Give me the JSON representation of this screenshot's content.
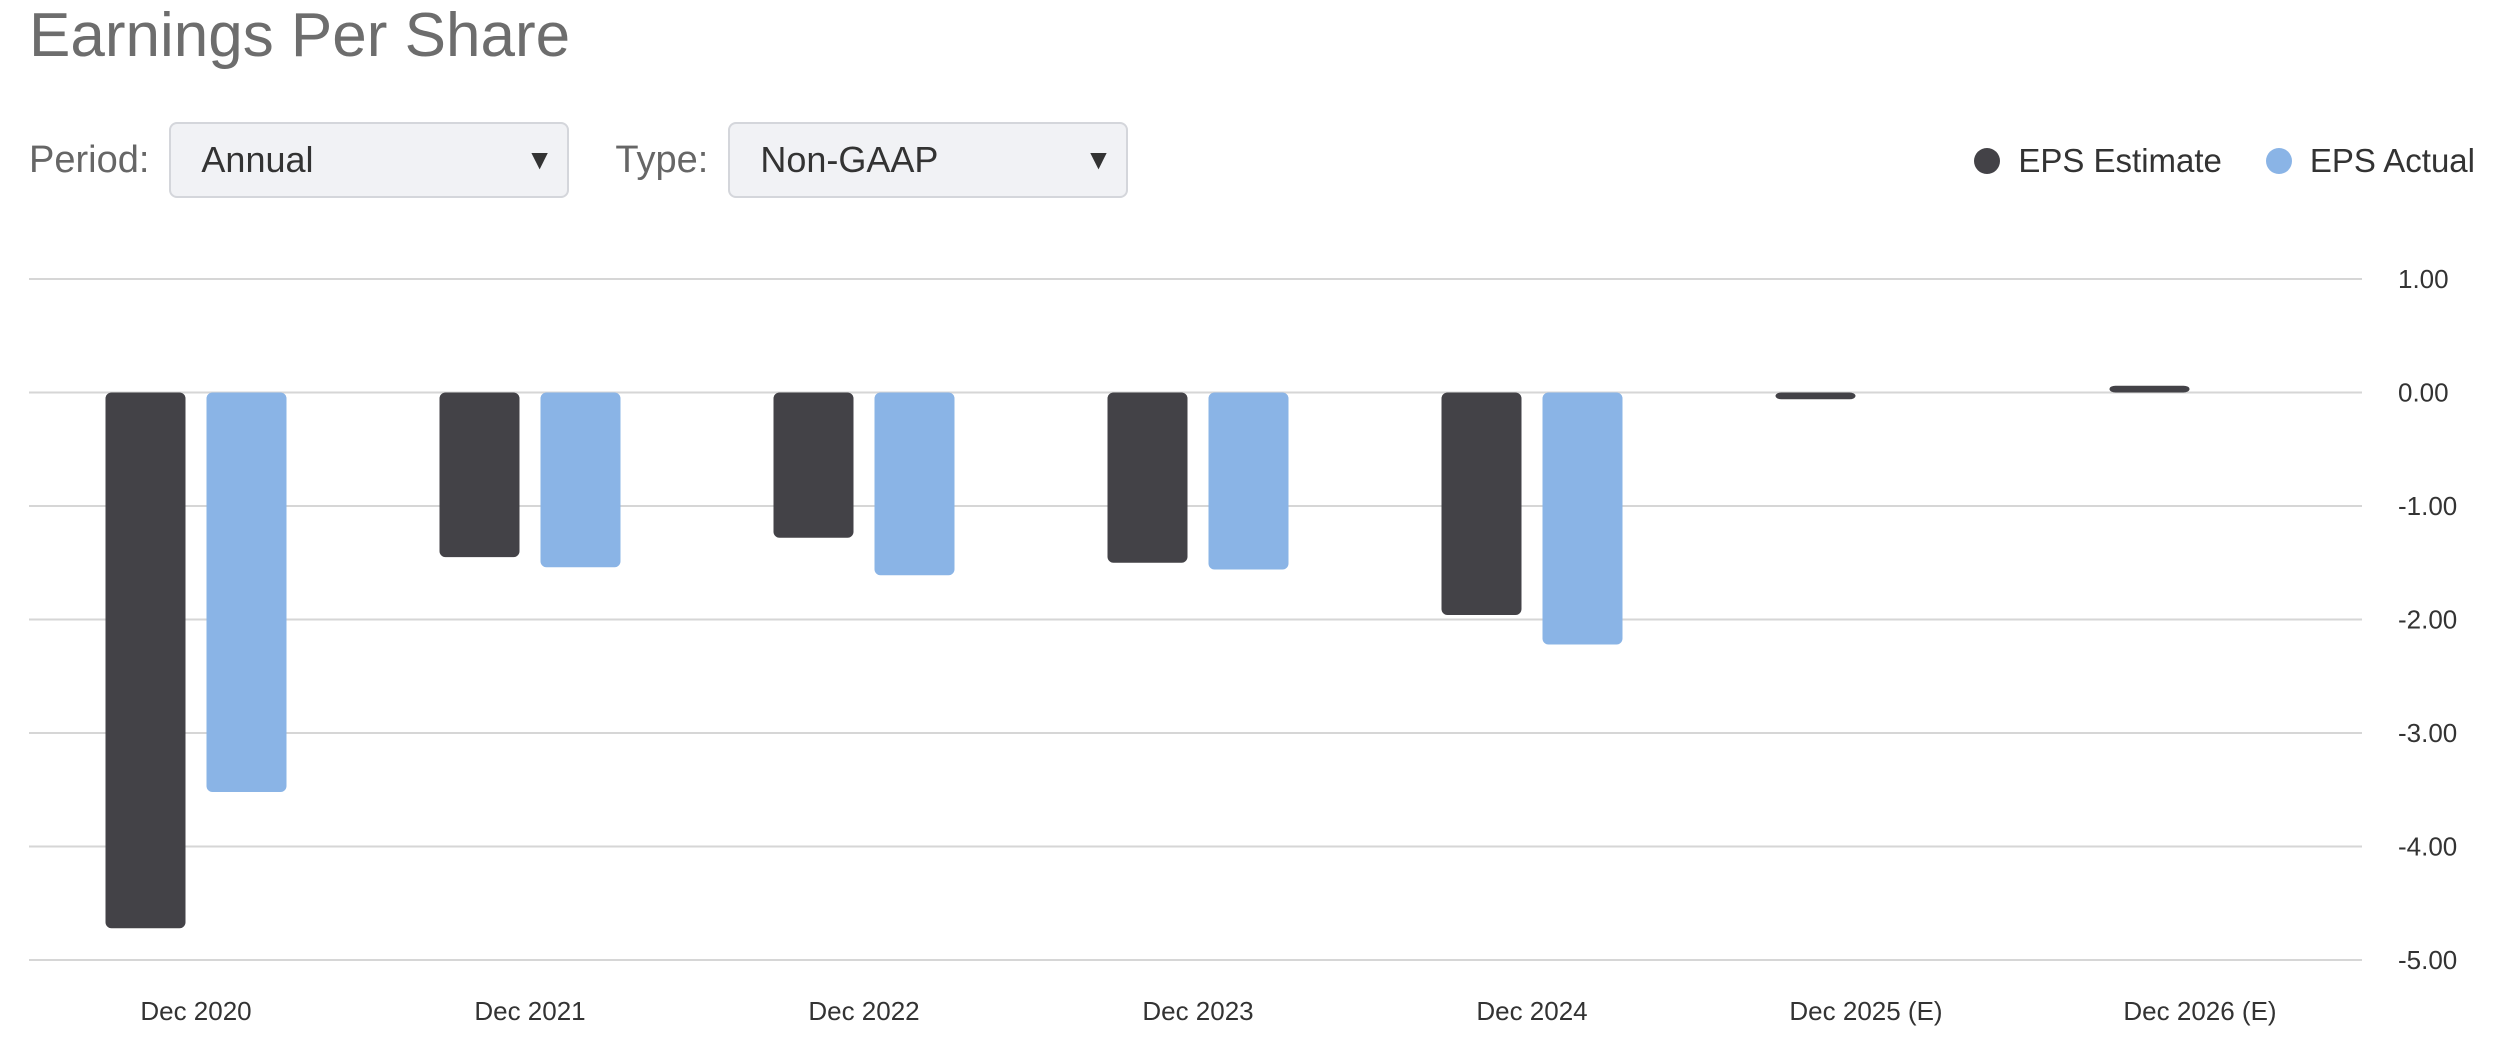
{
  "title": "Earnings Per Share",
  "controls": {
    "period_label": "Period:",
    "period_value": "Annual",
    "type_label": "Type:",
    "type_value": "Non-GAAP",
    "dropdown_icon": "caret-down-icon"
  },
  "legend": [
    {
      "label": "EPS Estimate",
      "color": "#434247"
    },
    {
      "label": "EPS Actual",
      "color": "#8ab4e6"
    }
  ],
  "chart_data": {
    "type": "bar",
    "categories": [
      "Dec 2020",
      "Dec 2021",
      "Dec 2022",
      "Dec 2023",
      "Dec 2024",
      "Dec 2025 (E)",
      "Dec 2026 (E)"
    ],
    "series": [
      {
        "name": "EPS Estimate",
        "color": "#434247",
        "values": [
          -4.72,
          -1.45,
          -1.28,
          -1.5,
          -1.96,
          -0.06,
          0.06
        ]
      },
      {
        "name": "EPS Actual",
        "color": "#8ab4e6",
        "values": [
          -3.52,
          -1.54,
          -1.61,
          -1.56,
          -2.22,
          null,
          null
        ]
      }
    ],
    "ylim": [
      -5,
      1
    ],
    "yticks": [
      1,
      0,
      -1,
      -2,
      -3,
      -4,
      -5
    ],
    "ytick_labels": [
      "1.00",
      "0.00",
      "-1.00",
      "-2.00",
      "-3.00",
      "-4.00",
      "-5.00"
    ],
    "grid": true,
    "legend_position": "top-right",
    "title": "Earnings Per Share",
    "xlabel": "",
    "ylabel": ""
  }
}
